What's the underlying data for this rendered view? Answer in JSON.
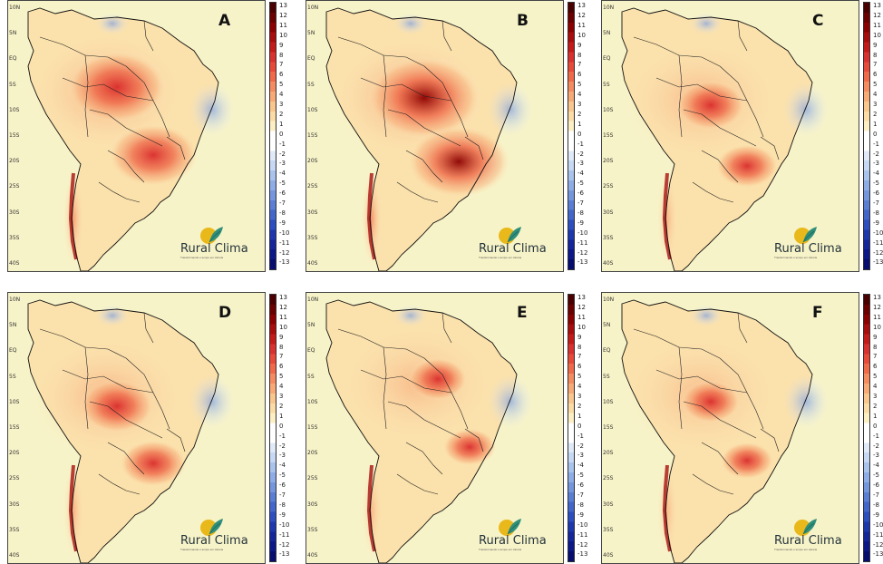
{
  "panels": [
    {
      "letter": "A",
      "intensity": 1.0,
      "hot_shift": [
        0,
        0
      ]
    },
    {
      "letter": "B",
      "intensity": 1.15,
      "hot_shift": [
        10,
        12
      ]
    },
    {
      "letter": "C",
      "intensity": 0.7,
      "hot_shift": [
        0,
        20
      ]
    },
    {
      "letter": "D",
      "intensity": 0.75,
      "hot_shift": [
        0,
        30
      ]
    },
    {
      "letter": "E",
      "intensity": 0.6,
      "hot_shift": [
        25,
        0
      ]
    },
    {
      "letter": "F",
      "intensity": 0.6,
      "hot_shift": [
        0,
        25
      ]
    }
  ],
  "latitude_labels": [
    "10N",
    "5N",
    "EQ",
    "5S",
    "10S",
    "15S",
    "20S",
    "25S",
    "30S",
    "35S",
    "40S"
  ],
  "colorbar": {
    "labels": [
      "13",
      "12",
      "11",
      "10",
      "9",
      "8",
      "7",
      "6",
      "5",
      "4",
      "3",
      "2",
      "1",
      "0",
      "-1",
      "-2",
      "-3",
      "-4",
      "-5",
      "-6",
      "-7",
      "-8",
      "-9",
      "-10",
      "-11",
      "-12",
      "-13"
    ],
    "colors": [
      "#4a0000",
      "#6b0000",
      "#8b0000",
      "#a80c0c",
      "#c41a1a",
      "#d93030",
      "#e84a3a",
      "#f06a4a",
      "#f48c60",
      "#f7aa76",
      "#f9c68e",
      "#fbdca6",
      "#fcefc4",
      "#ffffff",
      "#ffffff",
      "#dfe9f7",
      "#c6d8f3",
      "#a9c3ec",
      "#8eade6",
      "#7496dd",
      "#5a7ed4",
      "#4266ca",
      "#2c4ebf",
      "#1d38ad",
      "#14269a",
      "#0c1887",
      "#060d6e"
    ]
  },
  "logo": {
    "name": "Rural Clima",
    "tagline": "Transformando o tempo em ciência"
  },
  "colors": {
    "ocean_background": "#f7f3c8",
    "coast_line": "#111111"
  }
}
